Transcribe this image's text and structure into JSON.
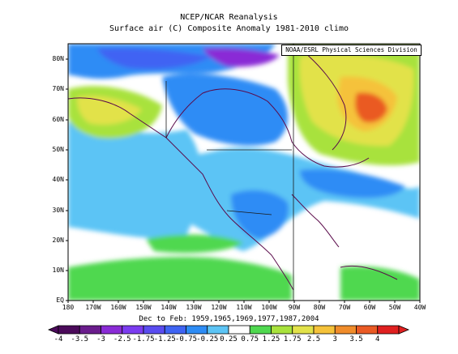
{
  "header": {
    "title": "NCEP/NCAR Reanalysis",
    "subtitle": "Surface air (C) Composite Anomaly 1981-2010 climo"
  },
  "source_label": "NOAA/ESRL Physical Sciences Division",
  "map": {
    "region": "North Pacific and North America",
    "lat_range": [
      0,
      85
    ],
    "lon_range": [
      -180,
      -40
    ],
    "lat_ticks": [
      "EQ",
      "10N",
      "20N",
      "30N",
      "40N",
      "50N",
      "60N",
      "70N",
      "80N"
    ],
    "lon_ticks": [
      "180",
      "170W",
      "160W",
      "150W",
      "140W",
      "130W",
      "120W",
      "110W",
      "100W",
      "90W",
      "80W",
      "70W",
      "60W",
      "50W",
      "40W"
    ]
  },
  "period_label": "Dec to Feb: 1959,1965,1969,1977,1987,2004",
  "colorbar": {
    "labels": [
      "-4",
      "-3.5",
      "-3",
      "-2.5",
      "-1.75",
      "-1.25",
      "-0.75",
      "-0.25",
      "0.25",
      "0.75",
      "1.25",
      "1.75",
      "2.5",
      "3",
      "3.5",
      "4"
    ],
    "colors": [
      "#4b0a5a",
      "#6a1c8c",
      "#8a2bd6",
      "#7b3cf0",
      "#5a4cf0",
      "#3f64f3",
      "#2d8cf5",
      "#5cc4f5",
      "#ffffff",
      "#4fd84f",
      "#a8e23c",
      "#e2e24a",
      "#f5c23a",
      "#f08c2a",
      "#ea5a24",
      "#e02020"
    ]
  },
  "legend_colors": {
    "strong_cold": "#6a1c8c",
    "cold": "#2d8cf5",
    "neutral": "#ffffff",
    "warm": "#4fd84f",
    "strong_warm": "#e02020"
  }
}
